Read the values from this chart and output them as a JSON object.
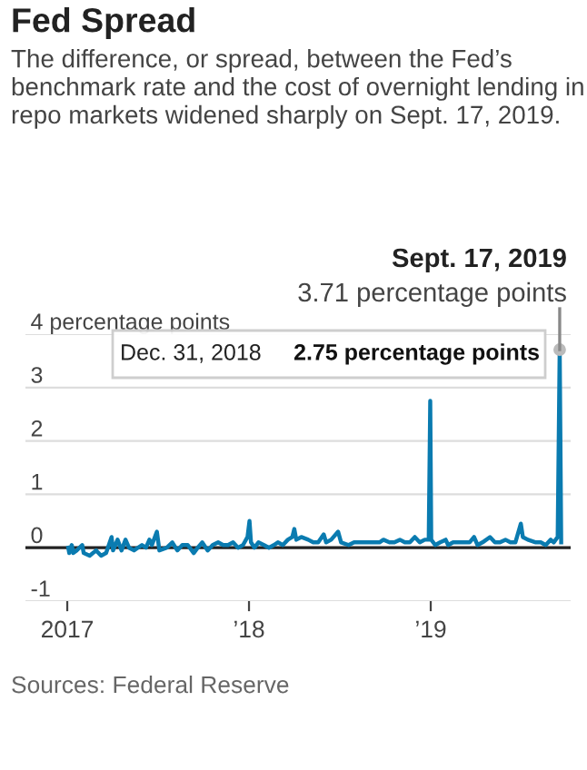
{
  "chart_data": {
    "type": "line",
    "title": "Fed Spread",
    "subtitle": "The difference, or spread, between the Fed’s benchmark rate and the cost of overnight lending in repo markets widened sharply on Sept. 17, 2019.",
    "annotations": [
      {
        "text": "Sept. 17, 2019",
        "x": "2019-09-17",
        "y": 3.71
      },
      {
        "text": "3.71 percentage points",
        "x": "2019-09-17",
        "y": 3.71
      },
      "Dec. 31, 2018",
      "2.75 percentage points",
      "Sources: Federal Reserve"
    ],
    "x": [
      "2017-01-03",
      "2017-01-05",
      "2017-01-10",
      "2017-01-13",
      "2017-01-20",
      "2017-01-31",
      "2017-02-03",
      "2017-02-15",
      "2017-02-28",
      "2017-03-10",
      "2017-03-20",
      "2017-03-31",
      "2017-04-03",
      "2017-04-12",
      "2017-04-20",
      "2017-04-28",
      "2017-05-05",
      "2017-05-15",
      "2017-05-31",
      "2017-06-08",
      "2017-06-15",
      "2017-06-20",
      "2017-06-30",
      "2017-07-05",
      "2017-07-20",
      "2017-07-31",
      "2017-08-10",
      "2017-08-20",
      "2017-08-31",
      "2017-09-12",
      "2017-09-20",
      "2017-09-29",
      "2017-10-10",
      "2017-10-20",
      "2017-10-31",
      "2017-11-10",
      "2017-11-20",
      "2017-11-30",
      "2017-12-10",
      "2017-12-20",
      "2017-12-29",
      "2018-01-02",
      "2018-01-05",
      "2018-01-12",
      "2018-01-20",
      "2018-01-31",
      "2018-02-10",
      "2018-02-20",
      "2018-02-28",
      "2018-03-10",
      "2018-03-20",
      "2018-03-29",
      "2018-04-02",
      "2018-04-06",
      "2018-04-16",
      "2018-04-30",
      "2018-05-10",
      "2018-05-20",
      "2018-05-31",
      "2018-06-05",
      "2018-06-15",
      "2018-06-29",
      "2018-07-05",
      "2018-07-20",
      "2018-07-31",
      "2018-08-10",
      "2018-08-20",
      "2018-08-31",
      "2018-09-10",
      "2018-09-20",
      "2018-09-28",
      "2018-10-10",
      "2018-10-20",
      "2018-10-31",
      "2018-11-10",
      "2018-11-20",
      "2018-11-30",
      "2018-12-10",
      "2018-12-20",
      "2018-12-28",
      "2018-12-31",
      "2019-01-02",
      "2019-01-10",
      "2019-01-20",
      "2019-01-31",
      "2019-02-05",
      "2019-02-15",
      "2019-02-28",
      "2019-03-10",
      "2019-03-20",
      "2019-03-29",
      "2019-04-05",
      "2019-04-15",
      "2019-04-30",
      "2019-05-10",
      "2019-05-20",
      "2019-05-31",
      "2019-06-10",
      "2019-06-20",
      "2019-07-01",
      "2019-07-05",
      "2019-07-15",
      "2019-07-31",
      "2019-08-10",
      "2019-08-20",
      "2019-08-30",
      "2019-09-05",
      "2019-09-13",
      "2019-09-17",
      "2019-09-20"
    ],
    "series": [
      {
        "color": "#0a7bb0",
        "values": [
          0.0,
          -0.1,
          0.05,
          -0.1,
          -0.05,
          0.05,
          -0.1,
          -0.15,
          -0.05,
          -0.15,
          -0.1,
          0.2,
          -0.05,
          0.15,
          -0.05,
          0.15,
          0.0,
          -0.05,
          0.05,
          0.0,
          0.15,
          0.05,
          0.3,
          -0.05,
          0.0,
          0.1,
          -0.05,
          0.05,
          0.05,
          -0.1,
          0.0,
          0.1,
          -0.05,
          0.05,
          0.1,
          0.05,
          0.05,
          0.1,
          0.0,
          0.05,
          0.2,
          0.5,
          0.1,
          0.0,
          0.1,
          0.05,
          0.0,
          0.05,
          0.1,
          0.05,
          0.15,
          0.2,
          0.35,
          0.15,
          0.2,
          0.15,
          0.1,
          0.1,
          0.25,
          0.1,
          0.15,
          0.3,
          0.1,
          0.05,
          0.1,
          0.1,
          0.1,
          0.1,
          0.1,
          0.1,
          0.15,
          0.1,
          0.1,
          0.15,
          0.1,
          0.1,
          0.2,
          0.1,
          0.15,
          0.15,
          2.75,
          0.15,
          0.05,
          0.1,
          0.15,
          0.05,
          0.1,
          0.1,
          0.1,
          0.1,
          0.2,
          0.05,
          0.1,
          0.2,
          0.1,
          0.1,
          0.15,
          0.1,
          0.1,
          0.45,
          0.2,
          0.15,
          0.1,
          0.1,
          0.05,
          0.15,
          0.1,
          0.2,
          3.71,
          0.1
        ]
      }
    ],
    "xlim": [
      "2016-10-09",
      "2019-10-09"
    ],
    "xticks": [
      {
        "value": "2017-01-01",
        "label": "2017"
      },
      {
        "value": "2018-01-01",
        "label": "’18"
      },
      {
        "value": "2019-01-01",
        "label": "’19"
      }
    ],
    "ylim": [
      -1,
      4
    ],
    "yticks": [
      -1,
      0,
      1,
      2,
      3,
      {
        "value": 4,
        "label": "4 percentage points"
      }
    ],
    "ref_lines": [
      {
        "axis": "y",
        "value": 0,
        "color": "#222222"
      }
    ],
    "grid": "y",
    "line_style": "solid"
  }
}
